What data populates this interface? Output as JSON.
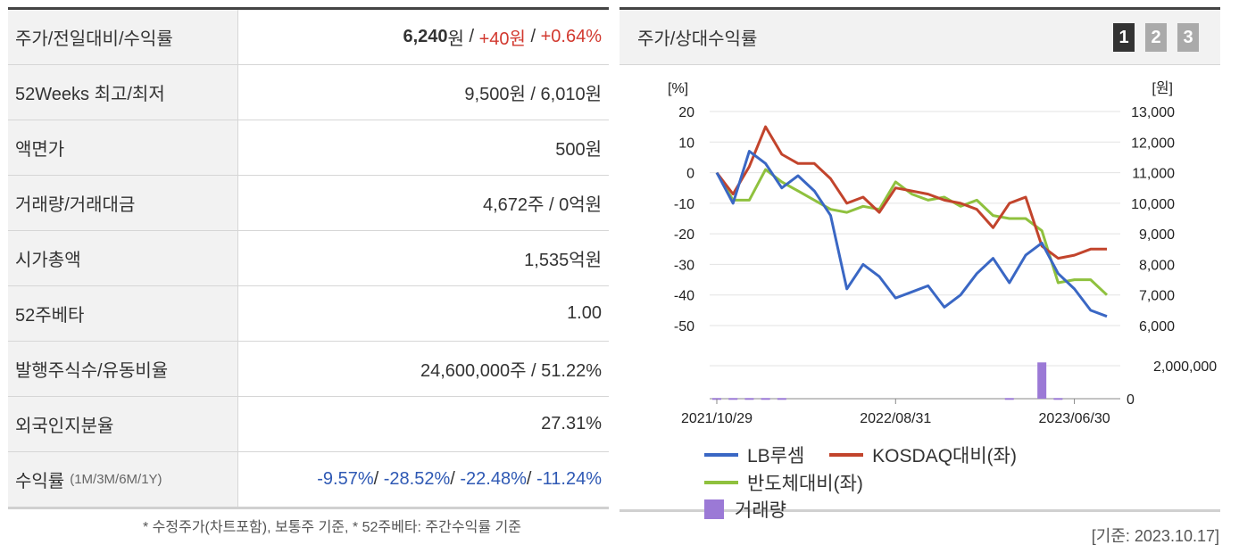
{
  "table": {
    "rows": [
      {
        "label": "주가/전일대비/수익률",
        "price": "6,240",
        "price_unit": "원",
        "sep": " / ",
        "change": "+40원",
        "sep2": " / ",
        "rate": "+0.64%"
      },
      {
        "label": "52Weeks 최고/최저",
        "value": "9,500원 / 6,010원"
      },
      {
        "label": "액면가",
        "value": "500원"
      },
      {
        "label": "거래량/거래대금",
        "value": "4,672주 / 0억원"
      },
      {
        "label": "시가총액",
        "value": "1,535억원"
      },
      {
        "label": "52주베타",
        "value": "1.00"
      },
      {
        "label": "발행주식수/유동비율",
        "value": "24,600,000주 / 51.22%"
      },
      {
        "label": "외국인지분율",
        "value": "27.31%"
      }
    ],
    "returns": {
      "label": "수익률",
      "sub": "(1M/3M/6M/1Y)",
      "r1": "-9.57%",
      "r2": "-28.52%",
      "r3": "-22.48%",
      "r4": "-11.24%",
      "sep": "/ "
    }
  },
  "note": "* 수정주가(차트포함), 보통주 기준, * 52주베타: 주간수익률 기준",
  "panel": {
    "title": "주가/상대수익률",
    "buttons": [
      "1",
      "2",
      "3"
    ],
    "basis": "[기준: 2023.10.17]"
  },
  "colors": {
    "lb": "#3a67c4",
    "kosdaq": "#c2442c",
    "semi": "#8fc13e",
    "volume": "#9b79d6"
  },
  "chart_data": {
    "type": "line",
    "left_axis": {
      "unit": "[%]",
      "ticks": [
        20,
        10,
        0,
        -10,
        -20,
        -30,
        -40,
        -50
      ],
      "range": [
        -50,
        20
      ]
    },
    "right_axis": {
      "unit": "[원]",
      "ticks": [
        "13,000",
        "12,000",
        "11,000",
        "10,000",
        "9,000",
        "8,000",
        "7,000",
        "6,000"
      ]
    },
    "volume_axis": {
      "ticks": [
        "2,000,000",
        "0"
      ]
    },
    "x_labels": [
      "2021/10/29",
      "2022/08/31",
      "2023/06/30"
    ],
    "x_label_index": [
      0,
      11,
      22
    ],
    "series": [
      {
        "name": "LB루셈",
        "values": [
          0,
          -10,
          7,
          3,
          -5,
          -1,
          -6,
          -14,
          -38,
          -30,
          -34,
          -41,
          -39,
          -37,
          -44,
          -40,
          -33,
          -28,
          -36,
          -27,
          -23,
          -33,
          -38,
          -45,
          -47
        ]
      },
      {
        "name": "KOSDAQ대비(좌)",
        "values": [
          0,
          -7,
          2,
          15,
          6,
          3,
          3,
          -2,
          -10,
          -8,
          -13,
          -5,
          -6,
          -7,
          -9,
          -10,
          -12,
          -18,
          -10,
          -8,
          -24,
          -28,
          -27,
          -25,
          -25
        ]
      },
      {
        "name": "반도체대비(좌)",
        "values": [
          0,
          -9,
          -9,
          1,
          -3,
          -6,
          -9,
          -12,
          -13,
          -11,
          -12,
          -3,
          -7,
          -9,
          -8,
          -11,
          -9,
          -14,
          -15,
          -15,
          -19,
          -36,
          -35,
          -35,
          -40
        ]
      },
      {
        "name": "거래량",
        "values": [
          40000,
          40000,
          40000,
          40000,
          40000,
          0,
          0,
          0,
          0,
          0,
          0,
          0,
          0,
          0,
          0,
          0,
          0,
          0,
          40000,
          0,
          2200000,
          40000,
          0,
          0,
          0
        ]
      }
    ],
    "volume_max": 2000000
  }
}
